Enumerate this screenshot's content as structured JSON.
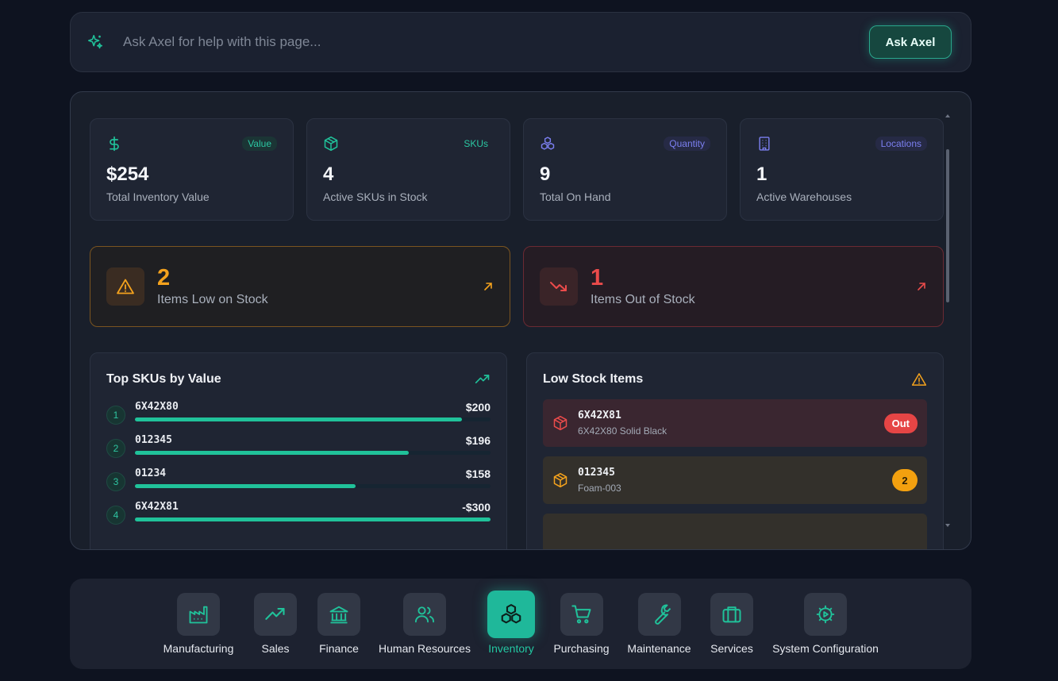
{
  "colors": {
    "accent": "#20c29a",
    "warning": "#f4a21d",
    "danger": "#ea4b4b",
    "indigo": "#6f74e8"
  },
  "askbar": {
    "placeholder": "Ask Axel for help with this page...",
    "button_label": "Ask Axel",
    "icon": "sparkle-icon"
  },
  "kpis": [
    {
      "icon": "dollar-icon",
      "tag": "Value",
      "value": "$254",
      "label": "Total Inventory Value"
    },
    {
      "icon": "box-icon",
      "tag": "SKUs",
      "value": "4",
      "label": "Active SKUs in Stock"
    },
    {
      "icon": "boxes-icon",
      "tag": "Quantity",
      "value": "9",
      "label": "Total On Hand"
    },
    {
      "icon": "building-icon",
      "tag": "Locations",
      "value": "1",
      "label": "Active Warehouses"
    }
  ],
  "alerts": {
    "low": {
      "icon": "warning-icon",
      "count": "2",
      "label": "Items Low on Stock"
    },
    "out": {
      "icon": "trending-down-icon",
      "count": "1",
      "label": "Items Out of Stock"
    }
  },
  "top_skus": {
    "title": "Top SKUs by Value",
    "icon": "trending-up-icon",
    "rows": [
      {
        "rank": "1",
        "sku": "6X42X80",
        "value": "$200",
        "fill": 0.92
      },
      {
        "rank": "2",
        "sku": "012345",
        "value": "$196",
        "fill": 0.77
      },
      {
        "rank": "3",
        "sku": "01234",
        "value": "$158",
        "fill": 0.62
      },
      {
        "rank": "4",
        "sku": "6X42X81",
        "value": "-$300",
        "fill": 1.0
      }
    ]
  },
  "low_stock": {
    "title": "Low Stock Items",
    "icon": "warning-icon",
    "items": [
      {
        "code": "6X42X81",
        "desc": "6X42X80 Solid Black",
        "badge": "Out",
        "status": "out"
      },
      {
        "code": "012345",
        "desc": "Foam-003",
        "badge": "2",
        "status": "low"
      }
    ]
  },
  "nav": {
    "items": [
      {
        "label": "Manufacturing",
        "icon": "factory-icon"
      },
      {
        "label": "Sales",
        "icon": "trending-up-icon"
      },
      {
        "label": "Finance",
        "icon": "bank-icon"
      },
      {
        "label": "Human Resources",
        "icon": "users-icon"
      },
      {
        "label": "Inventory",
        "icon": "boxes-icon",
        "active": true
      },
      {
        "label": "Purchasing",
        "icon": "cart-icon"
      },
      {
        "label": "Maintenance",
        "icon": "wrench-icon"
      },
      {
        "label": "Services",
        "icon": "briefcase-icon"
      },
      {
        "label": "System Configuration",
        "icon": "gear-icon"
      }
    ]
  }
}
